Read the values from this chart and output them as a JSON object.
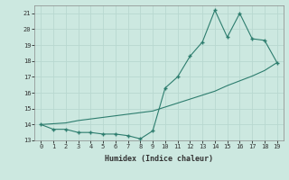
{
  "xlabel": "Humidex (Indice chaleur)",
  "x": [
    0,
    1,
    2,
    3,
    4,
    5,
    6,
    7,
    8,
    9,
    10,
    11,
    12,
    13,
    14,
    15,
    16,
    17,
    18,
    19
  ],
  "y_main": [
    14.0,
    13.7,
    13.7,
    13.5,
    13.5,
    13.4,
    13.4,
    13.3,
    13.1,
    13.6,
    16.3,
    17.0,
    18.3,
    19.2,
    21.2,
    19.5,
    21.0,
    19.4,
    19.3,
    17.9
  ],
  "y_trend": [
    14.0,
    14.05,
    14.1,
    14.25,
    14.35,
    14.45,
    14.55,
    14.65,
    14.75,
    14.85,
    15.1,
    15.35,
    15.6,
    15.85,
    16.1,
    16.45,
    16.75,
    17.05,
    17.4,
    17.9
  ],
  "line_color": "#2d7d6e",
  "bg_color": "#cce8e0",
  "grid_color": "#b8d8d0",
  "ylim": [
    13.0,
    21.5
  ],
  "yticks": [
    13,
    14,
    15,
    16,
    17,
    18,
    19,
    20,
    21
  ],
  "xlim": [
    -0.5,
    19.5
  ],
  "xticks": [
    0,
    1,
    2,
    3,
    4,
    5,
    6,
    7,
    8,
    9,
    10,
    11,
    12,
    13,
    14,
    15,
    16,
    17,
    18,
    19
  ]
}
